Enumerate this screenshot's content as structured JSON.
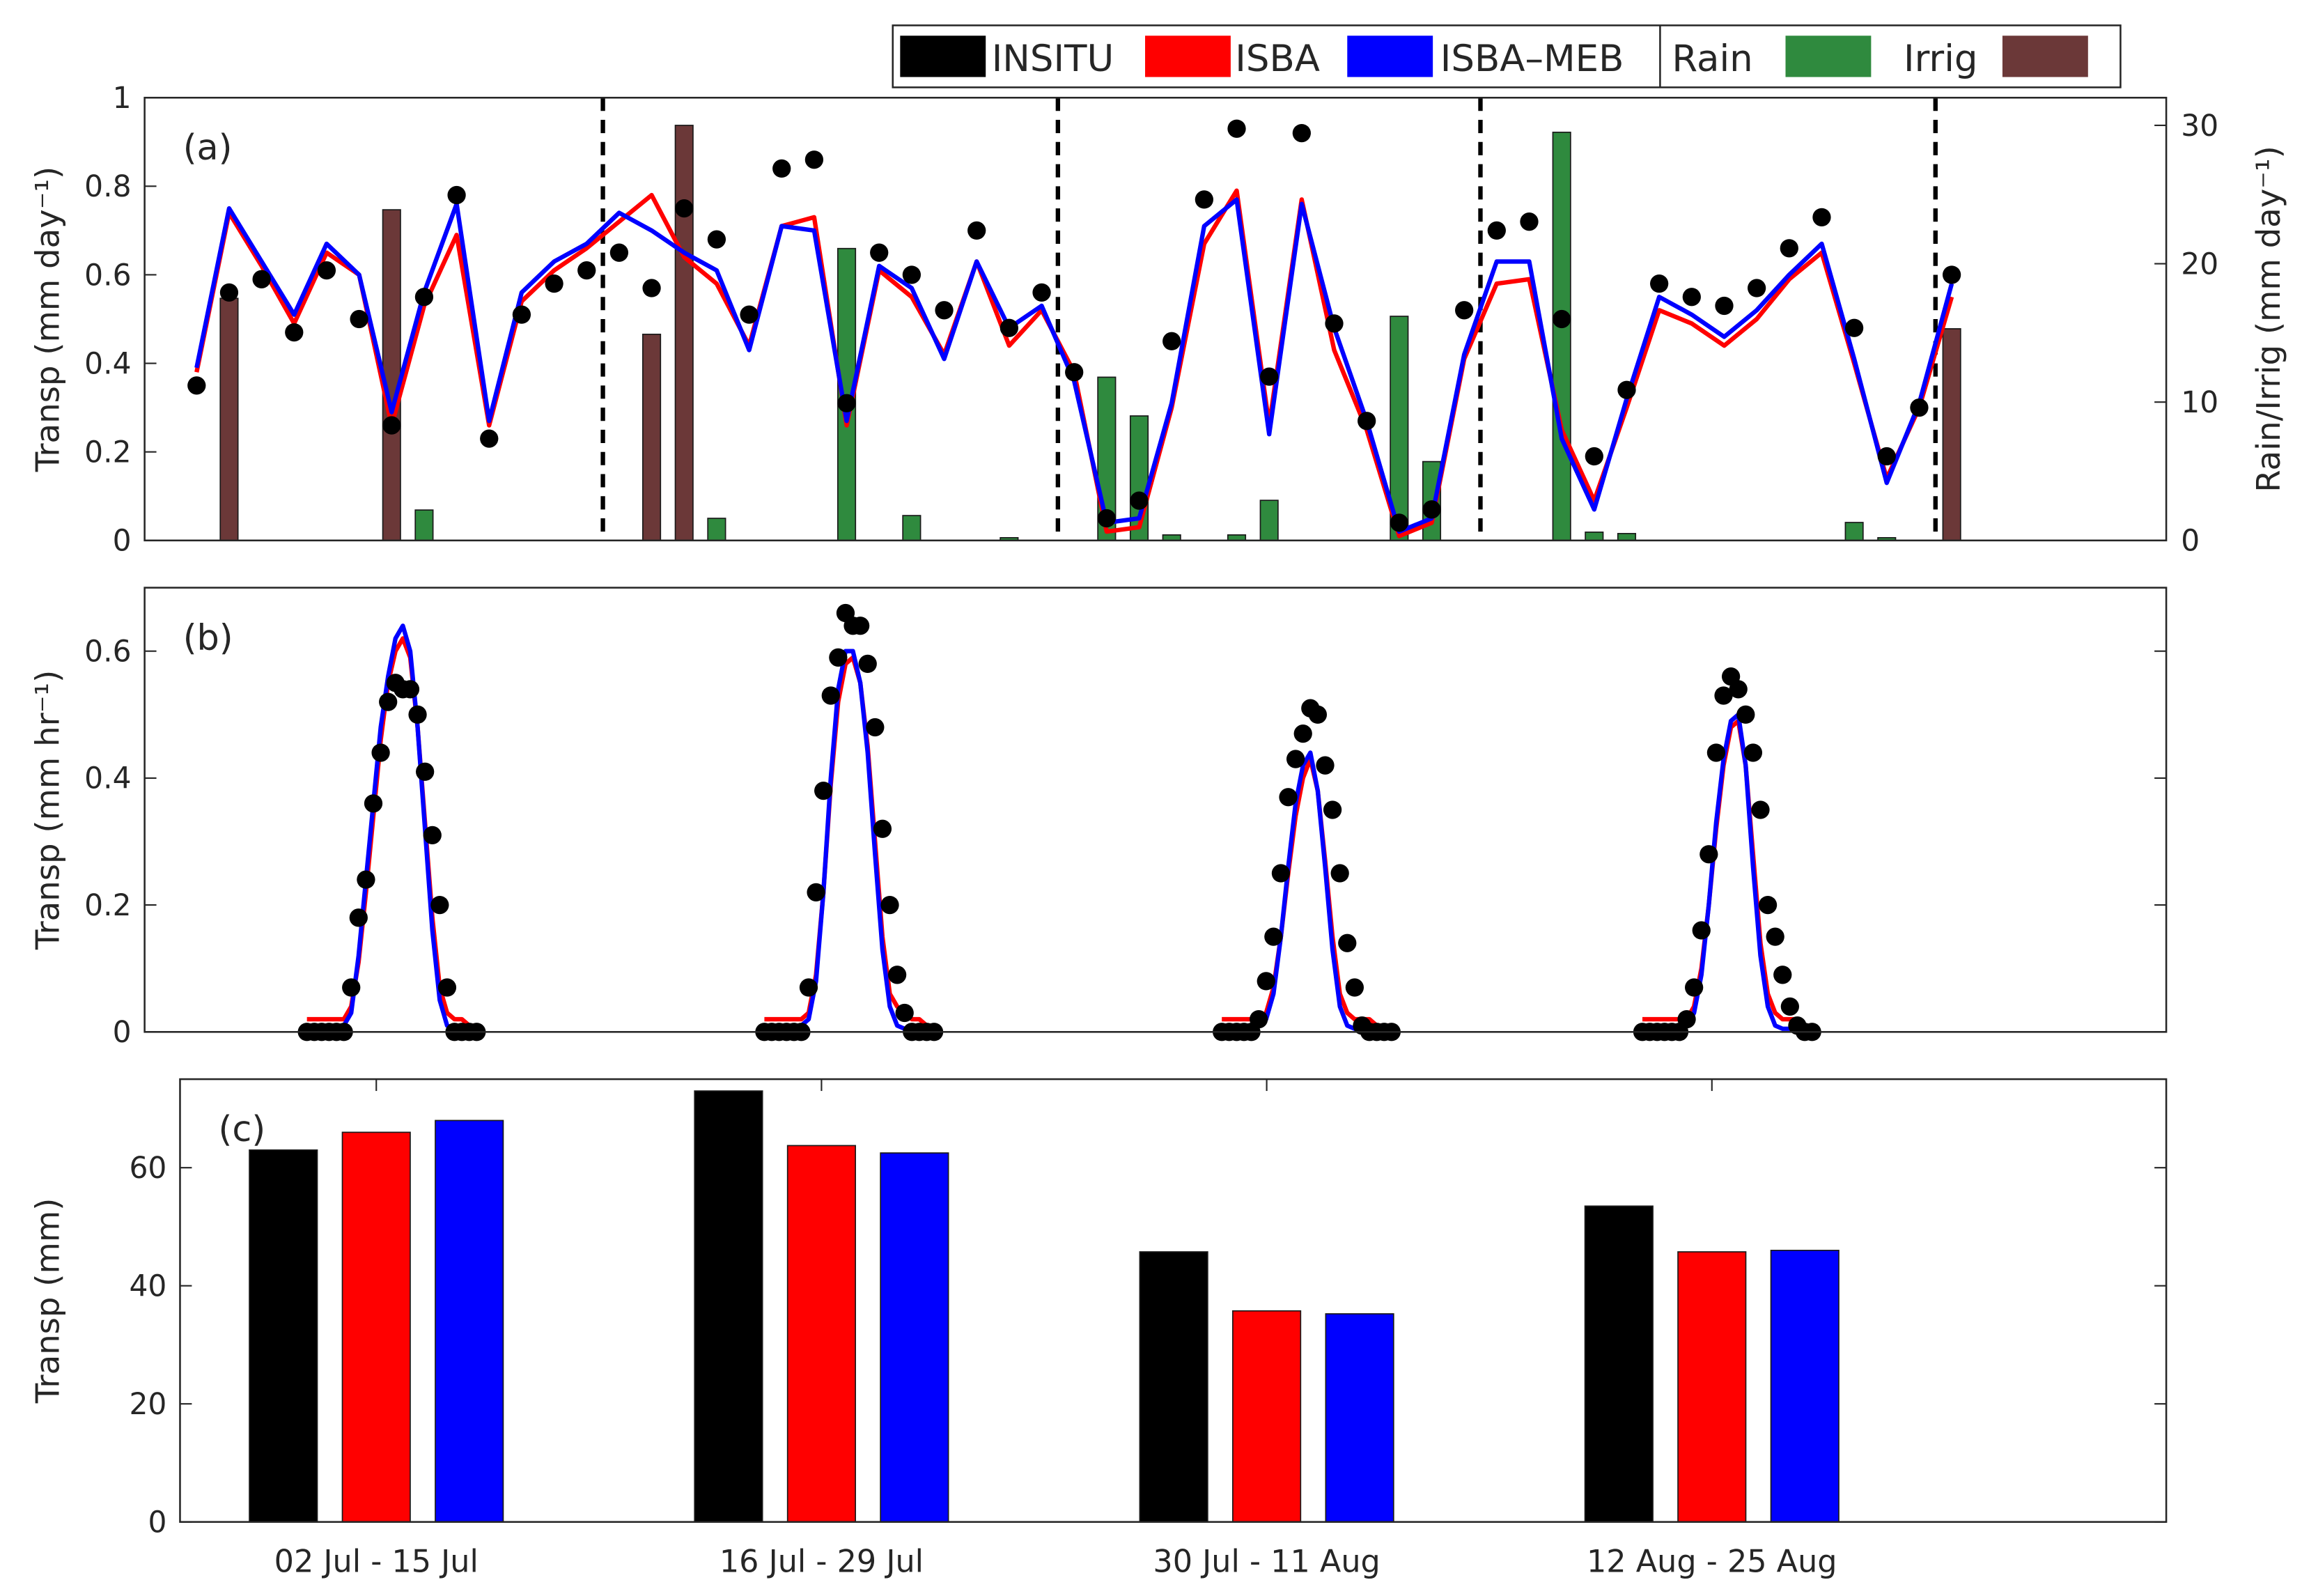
{
  "chart_data": [
    {
      "type": "line",
      "panel_label": "(a)",
      "ylabel": "Transp (mm day⁻¹)",
      "y2label": "Rain/Irrig (mm day⁻¹)",
      "xlim": [
        -0.6,
        61.6
      ],
      "ylim": [
        0,
        1
      ],
      "yticks": [
        0,
        0.2,
        0.4,
        0.6,
        0.8,
        1
      ],
      "y2lim": [
        0,
        32
      ],
      "y2ticks": [
        0,
        10,
        20,
        30
      ],
      "vlines": [
        13.5,
        27.5,
        40.5,
        54.5
      ],
      "x": [
        1,
        2,
        3,
        4,
        5,
        6,
        7,
        8,
        9,
        10,
        11,
        12,
        13,
        14,
        15,
        16,
        17,
        18,
        19,
        20,
        21,
        22,
        23,
        24,
        25,
        26,
        27,
        28,
        29,
        30,
        31,
        32,
        33,
        34,
        35,
        36,
        37,
        38,
        39,
        40,
        41,
        42,
        43,
        44,
        45,
        46,
        47,
        48,
        49,
        50,
        51,
        52,
        53,
        54,
        55
      ],
      "series": [
        {
          "name": "INSITU",
          "color": "#000000",
          "style": "scatter",
          "values": [
            0.35,
            0.56,
            0.59,
            0.47,
            0.61,
            0.5,
            0.26,
            0.55,
            0.78,
            0.23,
            0.51,
            0.58,
            0.61,
            0.65,
            0.57,
            0.75,
            0.68,
            0.51,
            0.84,
            0.86,
            0.31,
            0.65,
            0.6,
            0.52,
            0.7,
            0.48,
            0.56,
            0.38,
            0.05,
            0.09,
            0.45,
            0.77,
            0.93,
            0.37,
            0.92,
            0.49,
            0.27,
            0.04,
            0.07,
            0.52,
            0.7,
            0.72,
            0.5,
            0.19,
            0.34,
            0.58,
            0.55,
            0.53,
            0.57,
            0.66,
            0.73,
            0.48,
            0.19,
            0.3,
            0.6
          ]
        },
        {
          "name": "ISBA",
          "color": "#ff0000",
          "style": "line",
          "values": [
            0.38,
            0.74,
            0.62,
            0.49,
            0.65,
            0.6,
            0.26,
            0.53,
            0.69,
            0.26,
            0.54,
            0.61,
            0.66,
            0.72,
            0.78,
            0.64,
            0.58,
            0.44,
            0.71,
            0.73,
            0.26,
            0.61,
            0.55,
            0.42,
            0.63,
            0.44,
            0.52,
            0.38,
            0.02,
            0.03,
            0.3,
            0.67,
            0.79,
            0.26,
            0.77,
            0.43,
            0.25,
            0.01,
            0.04,
            0.41,
            0.58,
            0.59,
            0.25,
            0.09,
            0.3,
            0.52,
            0.49,
            0.44,
            0.5,
            0.59,
            0.65,
            0.4,
            0.14,
            0.3,
            0.55
          ]
        },
        {
          "name": "ISBA–MEB",
          "color": "#0000ff",
          "style": "line",
          "values": [
            0.39,
            0.75,
            0.63,
            0.51,
            0.67,
            0.6,
            0.29,
            0.56,
            0.76,
            0.27,
            0.56,
            0.63,
            0.67,
            0.74,
            0.7,
            0.65,
            0.61,
            0.43,
            0.71,
            0.7,
            0.27,
            0.62,
            0.57,
            0.41,
            0.63,
            0.48,
            0.53,
            0.36,
            0.04,
            0.05,
            0.31,
            0.71,
            0.77,
            0.24,
            0.76,
            0.48,
            0.27,
            0.02,
            0.05,
            0.42,
            0.63,
            0.63,
            0.23,
            0.07,
            0.32,
            0.55,
            0.51,
            0.46,
            0.52,
            0.6,
            0.67,
            0.41,
            0.13,
            0.31,
            0.58
          ]
        },
        {
          "name": "Rain",
          "color": "#2f8a3e",
          "style": "bar",
          "axis": "y2",
          "x": [
            8,
            17,
            21,
            23,
            26,
            29,
            30,
            31,
            33,
            34,
            38,
            39,
            43,
            44,
            45,
            52,
            53
          ],
          "values": [
            2.2,
            1.6,
            21.1,
            1.8,
            0.2,
            11.8,
            9.0,
            0.4,
            0.4,
            2.9,
            16.2,
            5.7,
            29.5,
            0.6,
            0.5,
            1.3,
            0.2
          ]
        },
        {
          "name": "Irrig",
          "color": "#6b3838",
          "style": "bar",
          "axis": "y2",
          "x": [
            2,
            7,
            15,
            16,
            55
          ],
          "values": [
            17.5,
            23.9,
            14.9,
            30.0,
            15.3
          ]
        }
      ]
    },
    {
      "type": "line",
      "panel_label": "(b)",
      "ylabel": "Transp (mm hr⁻¹)",
      "xlim": [
        0,
        274
      ],
      "ylim": [
        0,
        0.7
      ],
      "yticks": [
        0,
        0.2,
        0.4,
        0.6
      ],
      "x": [
        [
          22,
          23,
          24,
          25,
          26,
          27,
          28,
          29,
          30,
          31,
          32,
          33,
          34,
          35,
          36,
          37,
          38,
          39,
          40,
          41,
          42,
          43,
          44,
          45
        ],
        [
          84,
          85,
          86,
          87,
          88,
          89,
          90,
          91,
          92,
          93,
          94,
          95,
          96,
          97,
          98,
          99,
          100,
          101,
          102,
          103,
          104,
          105,
          106,
          107
        ],
        [
          146,
          147,
          148,
          149,
          150,
          151,
          152,
          153,
          154,
          155,
          156,
          157,
          158,
          159,
          160,
          161,
          162,
          163,
          164,
          165,
          166,
          167,
          168,
          169
        ],
        [
          203,
          204,
          205,
          206,
          207,
          208,
          209,
          210,
          211,
          212,
          213,
          214,
          215,
          216,
          217,
          218,
          219,
          220,
          221,
          222,
          223,
          224,
          225,
          226
        ]
      ],
      "series": [
        {
          "color": "#ff0000",
          "style": "line",
          "values": [
            [
              0.02,
              0.02,
              0.02,
              0.02,
              0.02,
              0.02,
              0.04,
              0.11,
              0.22,
              0.34,
              0.46,
              0.55,
              0.6,
              0.62,
              0.59,
              0.48,
              0.33,
              0.18,
              0.07,
              0.03,
              0.02,
              0.02,
              0.01,
              0.01
            ],
            [
              0.02,
              0.02,
              0.02,
              0.02,
              0.02,
              0.02,
              0.03,
              0.09,
              0.22,
              0.39,
              0.52,
              0.58,
              0.59,
              0.55,
              0.45,
              0.3,
              0.15,
              0.06,
              0.04,
              0.03,
              0.02,
              0.02,
              0.01,
              0.01
            ],
            [
              0.02,
              0.02,
              0.02,
              0.02,
              0.02,
              0.02,
              0.03,
              0.07,
              0.15,
              0.25,
              0.34,
              0.4,
              0.43,
              0.38,
              0.27,
              0.15,
              0.06,
              0.03,
              0.02,
              0.02,
              0.02,
              0.01,
              0.01,
              0.01
            ],
            [
              0.02,
              0.02,
              0.02,
              0.02,
              0.02,
              0.02,
              0.02,
              0.04,
              0.1,
              0.2,
              0.32,
              0.42,
              0.48,
              0.49,
              0.42,
              0.28,
              0.14,
              0.06,
              0.03,
              0.02,
              0.02,
              0.02,
              0.01,
              0.01
            ]
          ]
        },
        {
          "color": "#0000ff",
          "style": "line",
          "values": [
            [
              0.01,
              0.01,
              0.01,
              0.01,
              0.01,
              0.01,
              0.03,
              0.12,
              0.24,
              0.36,
              0.48,
              0.56,
              0.62,
              0.64,
              0.6,
              0.48,
              0.32,
              0.16,
              0.05,
              0.01,
              0.005,
              0.005,
              0.005,
              0.005
            ],
            [
              0.01,
              0.01,
              0.01,
              0.01,
              0.01,
              0.01,
              0.02,
              0.08,
              0.22,
              0.4,
              0.54,
              0.6,
              0.6,
              0.55,
              0.44,
              0.28,
              0.13,
              0.04,
              0.01,
              0.005,
              0.005,
              0.005,
              0.005,
              0.005
            ],
            [
              0.01,
              0.01,
              0.01,
              0.01,
              0.01,
              0.01,
              0.02,
              0.06,
              0.15,
              0.26,
              0.36,
              0.42,
              0.44,
              0.38,
              0.26,
              0.13,
              0.04,
              0.01,
              0.005,
              0.005,
              0.005,
              0.005,
              0.005,
              0.005
            ],
            [
              0.01,
              0.01,
              0.01,
              0.01,
              0.01,
              0.01,
              0.01,
              0.03,
              0.09,
              0.2,
              0.33,
              0.43,
              0.49,
              0.5,
              0.42,
              0.26,
              0.12,
              0.04,
              0.01,
              0.005,
              0.005,
              0.005,
              0.005,
              0.005
            ]
          ]
        },
        {
          "color": "#000000",
          "style": "scatter",
          "values": [
            [
              0,
              0,
              0,
              0,
              0,
              0,
              0.07,
              0.18,
              0.24,
              0.36,
              0.44,
              0.52,
              0.55,
              0.54,
              0.54,
              0.5,
              0.41,
              0.31,
              0.2,
              0.07,
              0,
              0,
              0,
              0
            ],
            [
              0,
              0,
              0,
              0,
              0,
              0,
              0.07,
              0.22,
              0.38,
              0.53,
              0.59,
              0.66,
              0.64,
              0.64,
              0.58,
              0.48,
              0.32,
              0.2,
              0.09,
              0.03,
              0,
              0,
              0,
              0
            ],
            [
              0,
              0,
              0,
              0,
              0,
              0.02,
              0.08,
              0.15,
              0.25,
              0.37,
              0.43,
              0.47,
              0.51,
              0.5,
              0.42,
              0.35,
              0.25,
              0.14,
              0.07,
              0.01,
              0,
              0,
              0,
              0
            ],
            [
              0,
              0,
              0,
              0,
              0,
              0,
              0.02,
              0.07,
              0.16,
              0.28,
              0.44,
              0.53,
              0.56,
              0.54,
              0.5,
              0.44,
              0.35,
              0.2,
              0.15,
              0.09,
              0.04,
              0.01,
              0,
              0
            ]
          ]
        }
      ]
    },
    {
      "type": "bar",
      "panel_label": "(c)",
      "ylabel": "Transp (mm)",
      "ylim": [
        0,
        75
      ],
      "yticks": [
        0,
        20,
        40,
        60
      ],
      "categories": [
        "02 Jul - 15 Jul",
        "16 Jul - 29 Jul",
        "30 Jul - 11 Aug",
        "12 Aug - 25 Aug"
      ],
      "series": [
        {
          "color": "#000000",
          "values": [
            63,
            73,
            45.75,
            53.5
          ]
        },
        {
          "color": "#ff0000",
          "values": [
            66,
            63.75,
            35.75,
            45.75
          ]
        },
        {
          "color": "#0000ff",
          "values": [
            68,
            62.5,
            35.25,
            46
          ]
        }
      ]
    }
  ]
}
